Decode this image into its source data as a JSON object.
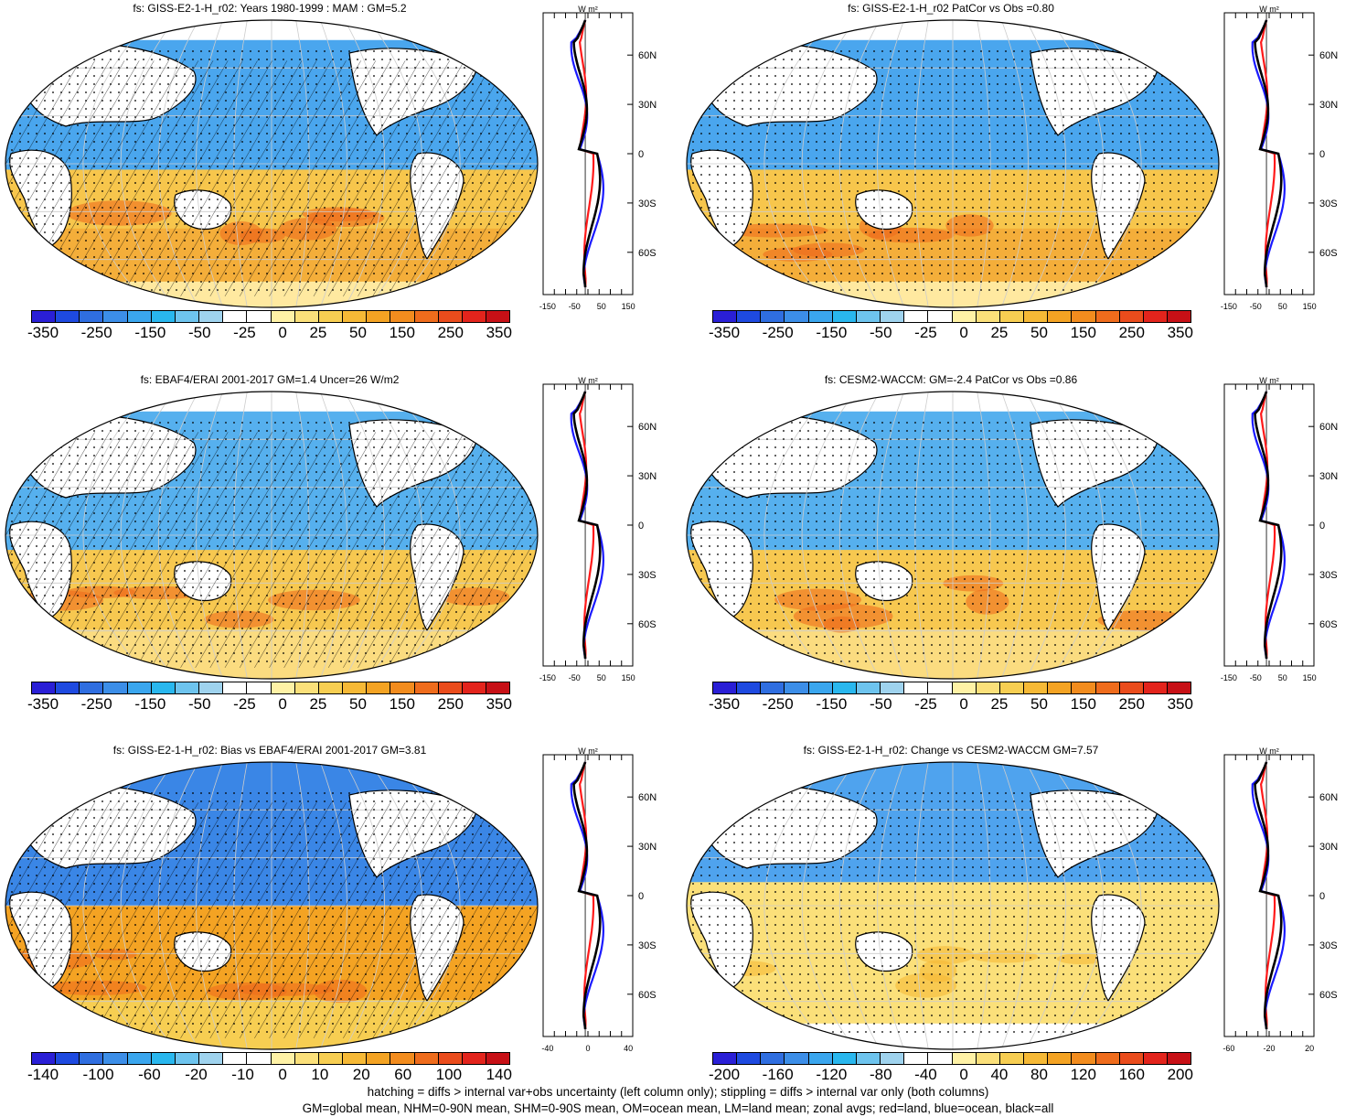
{
  "panels": [
    {
      "title": "fs: GISS-E2-1-H_r02: Years 1980-1999 : MAM : GM=5.2",
      "cbar_labels": [
        "-350",
        "-250",
        "-150",
        "-50",
        "-25",
        "0",
        "25",
        "50",
        "150",
        "250",
        "350"
      ],
      "zonal_xticks": [
        "-150",
        "-50",
        "50",
        "150"
      ],
      "hatching": true,
      "scheme": "a"
    },
    {
      "title": "fs: GISS-E2-1-H_r02 PatCor vs Obs =0.80",
      "cbar_labels": [
        "-350",
        "-250",
        "-150",
        "-50",
        "-25",
        "0",
        "25",
        "50",
        "150",
        "250",
        "350"
      ],
      "zonal_xticks": [
        "-150",
        "-50",
        "50",
        "150"
      ],
      "hatching": false,
      "scheme": "a"
    },
    {
      "title": "fs: EBAF4/ERAI 2001-2017 GM=1.4 Uncer=26 W/m2",
      "cbar_labels": [
        "-350",
        "-250",
        "-150",
        "-50",
        "-25",
        "0",
        "25",
        "50",
        "150",
        "250",
        "350"
      ],
      "zonal_xticks": [
        "-150",
        "-50",
        "50",
        "150"
      ],
      "hatching": true,
      "scheme": "b"
    },
    {
      "title": "fs: CESM2-WACCM: GM=-2.4 PatCor vs Obs =0.86",
      "cbar_labels": [
        "-350",
        "-250",
        "-150",
        "-50",
        "-25",
        "0",
        "25",
        "50",
        "150",
        "250",
        "350"
      ],
      "zonal_xticks": [
        "-150",
        "-50",
        "50",
        "150"
      ],
      "hatching": false,
      "scheme": "b"
    },
    {
      "title": "fs: GISS-E2-1-H_r02: Bias vs EBAF4/ERAI 2001-2017 GM=3.81",
      "cbar_labels": [
        "-140",
        "-100",
        "-60",
        "-20",
        "-10",
        "0",
        "10",
        "20",
        "60",
        "100",
        "140"
      ],
      "zonal_xticks": [
        "-40",
        "0",
        "40"
      ],
      "hatching": true,
      "scheme": "c"
    },
    {
      "title": "fs: GISS-E2-1-H_r02: Change vs CESM2-WACCM GM=7.57",
      "cbar_labels": [
        "-200",
        "-160",
        "-120",
        "-80",
        "-40",
        "0",
        "40",
        "80",
        "120",
        "160",
        "200"
      ],
      "zonal_xticks": [
        "-60",
        "-20",
        "20"
      ],
      "hatching": false,
      "scheme": "d"
    }
  ],
  "zonal_unit": "W m²",
  "lat_labels": [
    "60N",
    "30N",
    "0",
    "30S",
    "60S"
  ],
  "colorbar_colors": [
    "#2a1fd6",
    "#1e4ae0",
    "#2f6ee0",
    "#3c8ee8",
    "#3aa6ee",
    "#29b7ee",
    "#6ec4ee",
    "#9fd3ee",
    "#ffffff",
    "#ffffff",
    "#fff2a6",
    "#fbe07a",
    "#f7ce52",
    "#f6b936",
    "#f4a323",
    "#f28c1e",
    "#ef6c1c",
    "#ea4c1c",
    "#e3241c",
    "#c71016"
  ],
  "footer": {
    "line1": "hatching = diffs > internal var+obs uncertainty (left column only); stippling = diffs > internal var only (both columns)",
    "line2": "GM=global mean, NHM=0-90N mean, SHM=0-90S mean, OM=ocean mean, LM=land mean; zonal avgs; red=land, blue=ocean, black=all"
  }
}
